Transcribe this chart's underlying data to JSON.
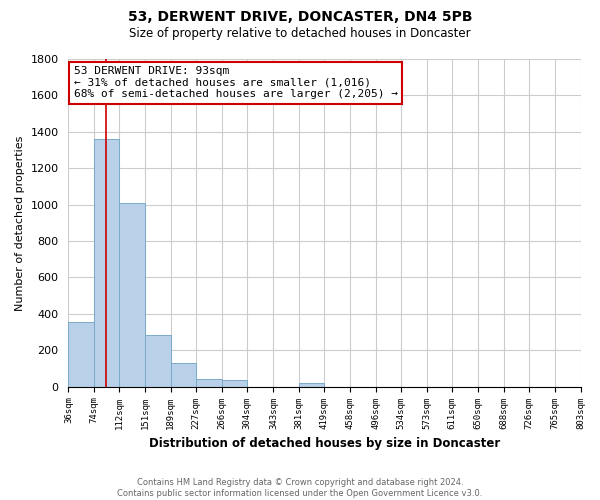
{
  "title": "53, DERWENT DRIVE, DONCASTER, DN4 5PB",
  "subtitle": "Size of property relative to detached houses in Doncaster",
  "xlabel": "Distribution of detached houses by size in Doncaster",
  "ylabel": "Number of detached properties",
  "bar_values": [
    355,
    1360,
    1010,
    285,
    128,
    42,
    35,
    0,
    0,
    20,
    0,
    0,
    0,
    0,
    0,
    0,
    0,
    0,
    0,
    0
  ],
  "bin_edges": [
    36,
    74,
    112,
    151,
    189,
    227,
    266,
    304,
    343,
    381,
    419,
    458,
    496,
    534,
    573,
    611,
    650,
    688,
    726,
    765,
    803
  ],
  "bar_color": "#b8d0e8",
  "bar_edge_color": "#7aaac8",
  "property_line_x": 93,
  "annotation_title": "53 DERWENT DRIVE: 93sqm",
  "annotation_line1": "← 31% of detached houses are smaller (1,016)",
  "annotation_line2": "68% of semi-detached houses are larger (2,205) →",
  "annotation_box_color": "#ffffff",
  "annotation_box_edge": "#cc0000",
  "red_line_color": "#cc0000",
  "ylim": [
    0,
    1800
  ],
  "yticks": [
    0,
    200,
    400,
    600,
    800,
    1000,
    1200,
    1400,
    1600,
    1800
  ],
  "grid_color": "#cccccc",
  "footer_line1": "Contains HM Land Registry data © Crown copyright and database right 2024.",
  "footer_line2": "Contains public sector information licensed under the Open Government Licence v3.0.",
  "bg_color": "#ffffff",
  "title_fontsize": 10,
  "subtitle_fontsize": 8.5
}
